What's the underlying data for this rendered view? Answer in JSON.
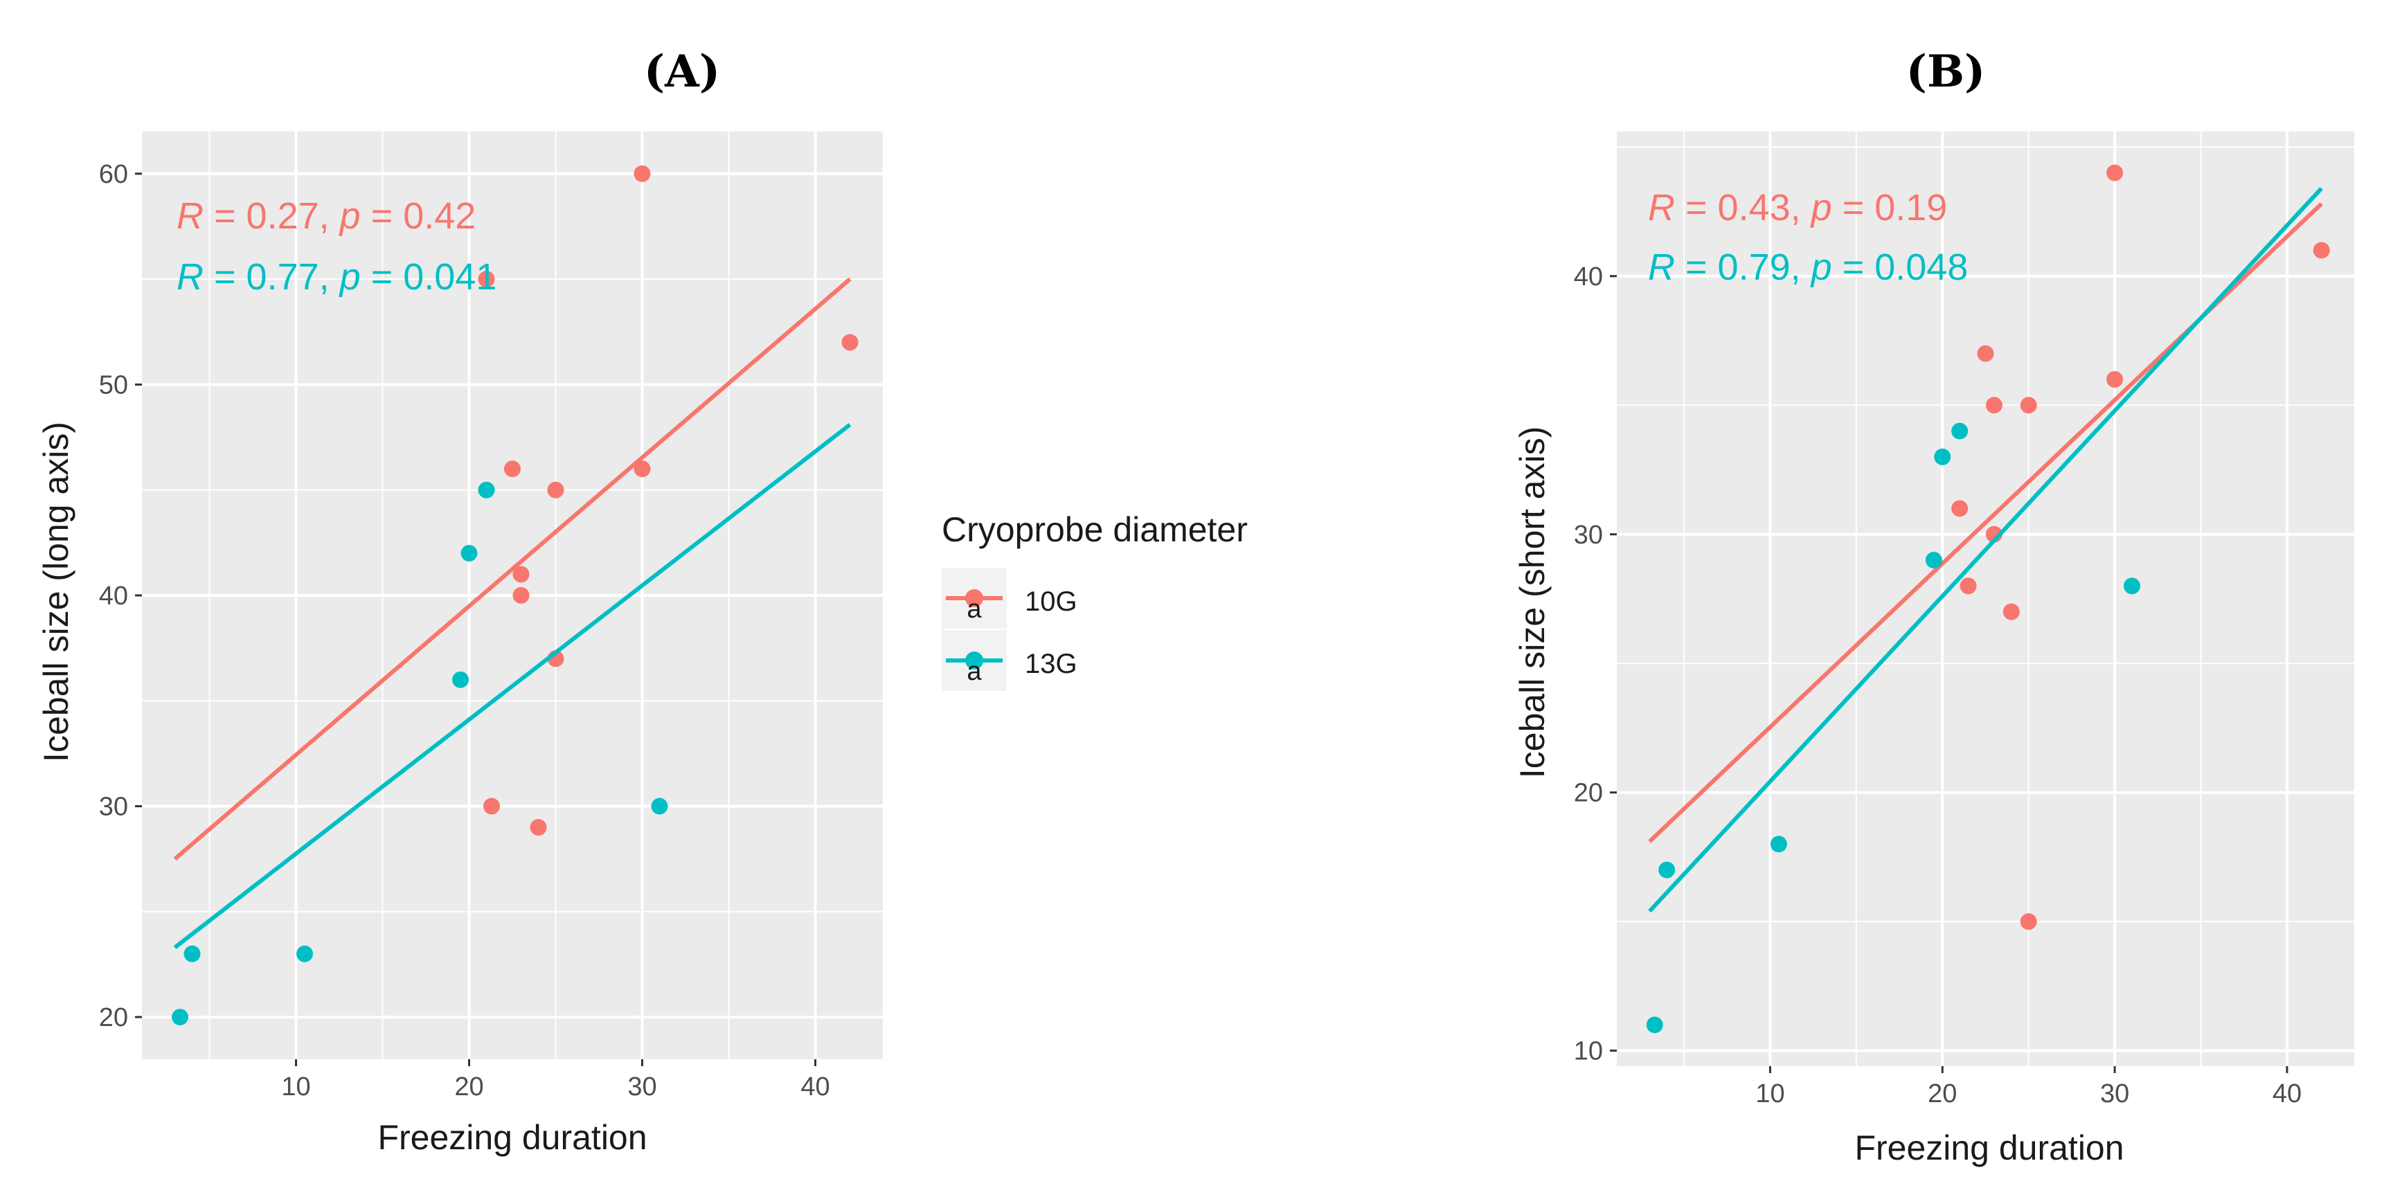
{
  "colors": {
    "g10": "#F8766D",
    "g13": "#00BFC4",
    "panel": "#EBEBEB",
    "grid": "#FFFFFF"
  },
  "legend": {
    "title": "Cryoprobe diameter",
    "items": [
      {
        "label": "10G",
        "color": "#F8766D"
      },
      {
        "label": "13G",
        "color": "#00BFC4"
      }
    ]
  },
  "chart_data": [
    {
      "panel": "A",
      "title": "(A)",
      "type": "scatter",
      "xlabel": "Freezing duration",
      "ylabel": "Iceball size (long axis)",
      "xlim": [
        1.1,
        43.9
      ],
      "ylim": [
        18,
        62
      ],
      "xticks": [
        10,
        20,
        30,
        40
      ],
      "yticks": [
        20,
        30,
        40,
        50,
        60
      ],
      "annotations": [
        {
          "series": "10G",
          "R": "0.27",
          "p": "0.42"
        },
        {
          "series": "13G",
          "R": "0.77",
          "p": "0.041"
        }
      ],
      "series": [
        {
          "name": "10G",
          "points": [
            [
              21,
              55
            ],
            [
              30,
              60
            ],
            [
              42,
              52
            ],
            [
              22.5,
              46
            ],
            [
              25,
              45
            ],
            [
              30,
              46
            ],
            [
              23,
              41
            ],
            [
              23,
              40
            ],
            [
              25,
              37
            ],
            [
              21.3,
              30
            ],
            [
              24,
              29
            ]
          ],
          "fit": [
            [
              3,
              27.5
            ],
            [
              42,
              55
            ]
          ]
        },
        {
          "name": "13G",
          "points": [
            [
              21,
              45
            ],
            [
              20,
              42
            ],
            [
              19.5,
              36
            ],
            [
              31,
              30
            ],
            [
              4,
              23
            ],
            [
              10.5,
              23
            ],
            [
              3.3,
              20
            ]
          ],
          "fit": [
            [
              3,
              23.3
            ],
            [
              42,
              48.1
            ]
          ]
        }
      ]
    },
    {
      "panel": "B",
      "title": "(B)",
      "type": "scatter",
      "xlabel": "Freezing duration",
      "ylabel": "Iceball size (short axis)",
      "xlim": [
        1.1,
        43.9
      ],
      "ylim": [
        9.4,
        45.6
      ],
      "xticks": [
        10,
        20,
        30,
        40
      ],
      "yticks": [
        10,
        20,
        30,
        40
      ],
      "annotations": [
        {
          "series": "10G",
          "R": "0.43",
          "p": "0.19"
        },
        {
          "series": "13G",
          "R": "0.79",
          "p": "0.048"
        }
      ],
      "series": [
        {
          "name": "10G",
          "points": [
            [
              30,
              44
            ],
            [
              42,
              41
            ],
            [
              22.5,
              37
            ],
            [
              30,
              36
            ],
            [
              23,
              35
            ],
            [
              25,
              35
            ],
            [
              21,
              31
            ],
            [
              23,
              30
            ],
            [
              21.5,
              28
            ],
            [
              24,
              27
            ],
            [
              25,
              15
            ]
          ],
          "fit": [
            [
              3,
              18.1
            ],
            [
              42,
              42.8
            ]
          ]
        },
        {
          "name": "13G",
          "points": [
            [
              21,
              34
            ],
            [
              20,
              33
            ],
            [
              19.5,
              29
            ],
            [
              31,
              28
            ],
            [
              10.5,
              18
            ],
            [
              4,
              17
            ],
            [
              3.3,
              11
            ]
          ],
          "fit": [
            [
              3,
              15.4
            ],
            [
              42,
              43.4
            ]
          ]
        }
      ]
    }
  ]
}
